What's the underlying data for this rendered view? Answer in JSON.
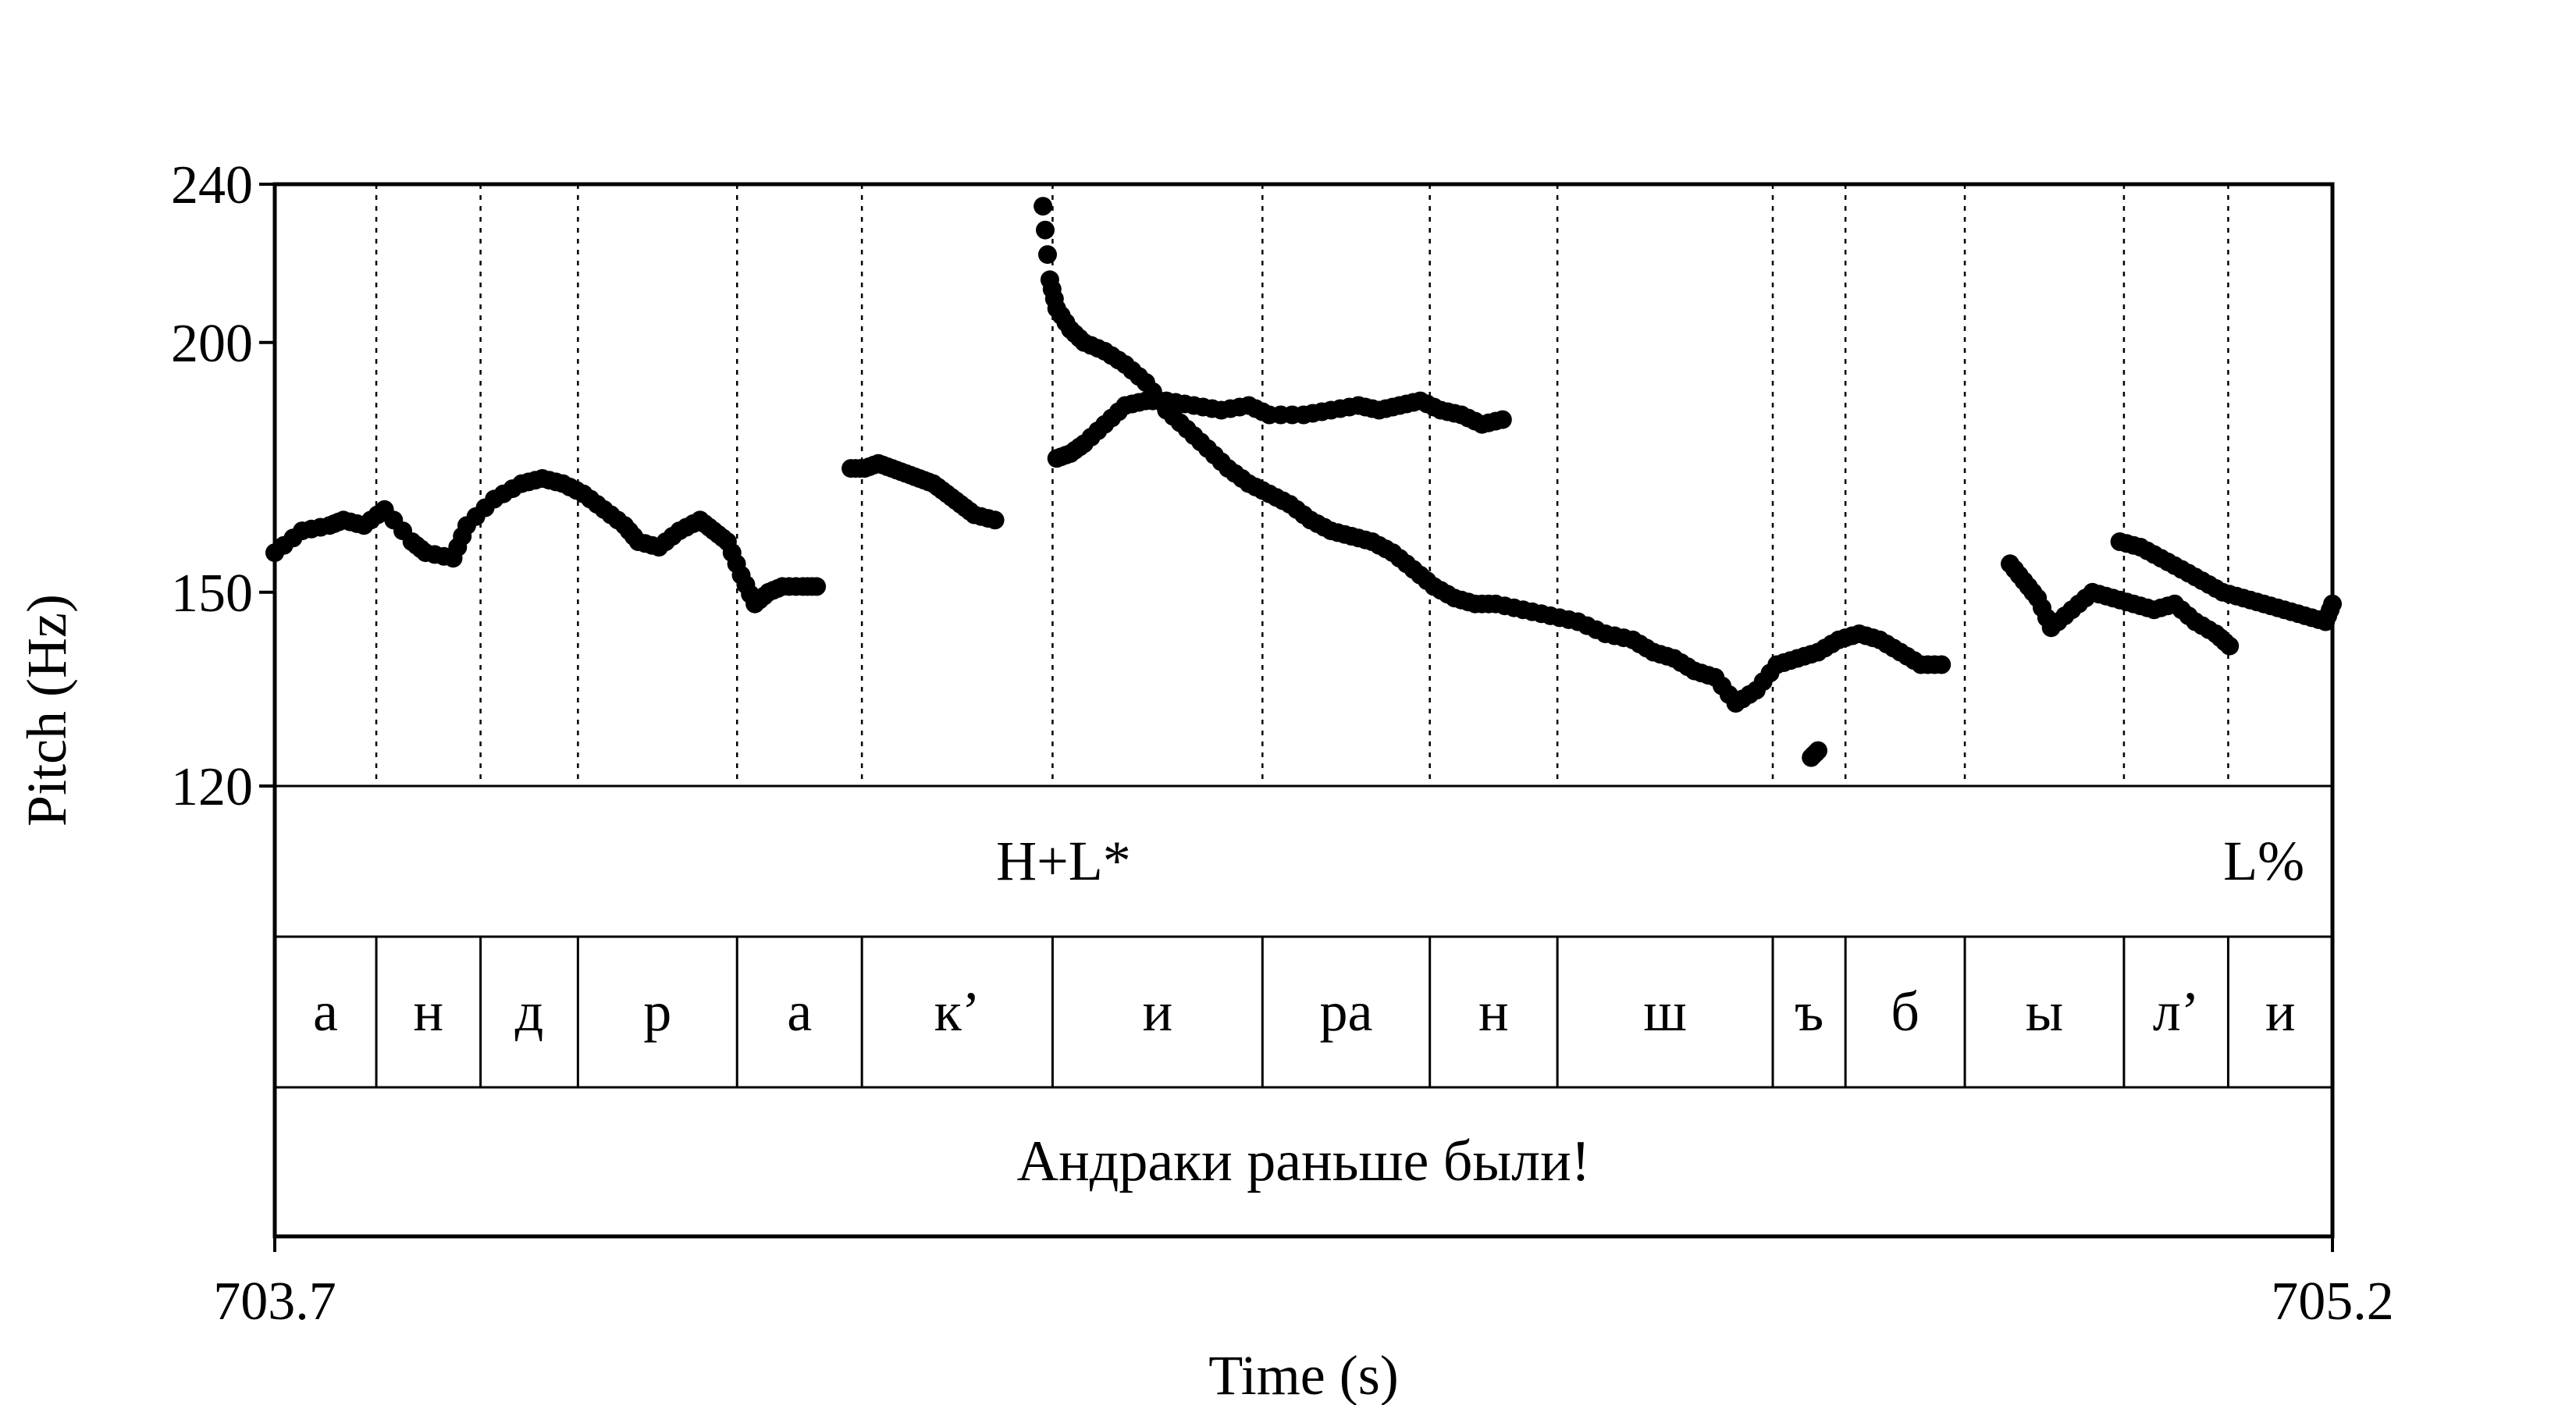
{
  "chart_data": {
    "type": "scatter",
    "xlabel": "Time (s)",
    "ylabel": "Pitch (Hz)",
    "xlim": [
      703.7,
      705.2
    ],
    "ylim": [
      120,
      240
    ],
    "x_tick_labels": [
      "703.7",
      "705.2"
    ],
    "y_tick_labels": [
      "240",
      "200",
      "150",
      "120"
    ],
    "y_ticks": [
      240,
      200,
      150,
      120
    ],
    "y_scale": "log",
    "segment_boundaries": [
      703.774,
      703.85,
      703.921,
      704.037,
      704.128,
      704.267,
      704.42,
      704.542,
      704.635,
      704.792,
      704.845,
      704.932,
      705.048,
      705.124
    ],
    "pitch_tracks": [
      {
        "points": [
          [
            703.7,
            157
          ],
          [
            703.72,
            161
          ],
          [
            703.74,
            162
          ],
          [
            703.75,
            163
          ],
          [
            703.765,
            162
          ],
          [
            703.78,
            165
          ],
          [
            703.8,
            159
          ],
          [
            703.81,
            157
          ],
          [
            703.83,
            156
          ],
          [
            703.84,
            162
          ],
          [
            703.86,
            167
          ],
          [
            703.88,
            170
          ],
          [
            703.895,
            171
          ],
          [
            703.91,
            170
          ],
          [
            703.925,
            168
          ],
          [
            703.94,
            165
          ],
          [
            703.955,
            162
          ],
          [
            703.965,
            159
          ],
          [
            703.98,
            158
          ],
          [
            703.995,
            161
          ],
          [
            704.01,
            163
          ],
          [
            704.02,
            161
          ],
          [
            704.03,
            159
          ],
          [
            704.04,
            153
          ],
          [
            704.05,
            148
          ],
          [
            704.06,
            150
          ],
          [
            704.07,
            151
          ],
          [
            704.085,
            151
          ],
          [
            704.095,
            151
          ]
        ]
      },
      {
        "points": [
          [
            704.12,
            173
          ],
          [
            704.13,
            173
          ],
          [
            704.14,
            174
          ],
          [
            704.15,
            173
          ],
          [
            704.16,
            172
          ],
          [
            704.17,
            171
          ],
          [
            704.18,
            170
          ],
          [
            704.19,
            168
          ],
          [
            704.2,
            166
          ],
          [
            704.21,
            164
          ],
          [
            704.225,
            163
          ]
        ]
      },
      {
        "points": [
          [
            704.27,
            175
          ],
          [
            704.28,
            176
          ],
          [
            704.29,
            178
          ],
          [
            704.305,
            182
          ],
          [
            704.32,
            186
          ],
          [
            704.335,
            187
          ],
          [
            704.35,
            187
          ],
          [
            704.37,
            186
          ],
          [
            704.39,
            185
          ],
          [
            704.41,
            186
          ],
          [
            704.425,
            184
          ],
          [
            704.45,
            184
          ],
          [
            704.47,
            185
          ],
          [
            704.49,
            186
          ],
          [
            704.505,
            185
          ],
          [
            704.52,
            186
          ],
          [
            704.535,
            187
          ],
          [
            704.55,
            185
          ],
          [
            704.565,
            184
          ],
          [
            704.58,
            182
          ],
          [
            704.595,
            183
          ]
        ]
      },
      {
        "points": [
          [
            704.26,
            234
          ],
          [
            704.265,
            215
          ],
          [
            704.27,
            208
          ],
          [
            704.28,
            203
          ],
          [
            704.29,
            200
          ],
          [
            704.305,
            198
          ],
          [
            704.32,
            195
          ],
          [
            704.335,
            191
          ],
          [
            704.35,
            185
          ],
          [
            704.365,
            181
          ],
          [
            704.38,
            177
          ],
          [
            704.395,
            173
          ],
          [
            704.41,
            170
          ],
          [
            704.425,
            168
          ],
          [
            704.44,
            166
          ],
          [
            704.455,
            163
          ],
          [
            704.47,
            161
          ],
          [
            704.485,
            160
          ],
          [
            704.5,
            159
          ],
          [
            704.515,
            157
          ],
          [
            704.53,
            154
          ],
          [
            704.545,
            151
          ],
          [
            704.56,
            149
          ],
          [
            704.575,
            148
          ],
          [
            704.59,
            148
          ],
          [
            704.61,
            147
          ],
          [
            704.63,
            146
          ],
          [
            704.65,
            145
          ],
          [
            704.67,
            143
          ],
          [
            704.69,
            142
          ],
          [
            704.705,
            140
          ],
          [
            704.72,
            139
          ],
          [
            704.735,
            137
          ],
          [
            704.75,
            136
          ],
          [
            704.765,
            132
          ],
          [
            704.78,
            134
          ],
          [
            704.795,
            138
          ],
          [
            704.81,
            139
          ],
          [
            704.825,
            140
          ],
          [
            704.84,
            142
          ],
          [
            704.855,
            143
          ],
          [
            704.87,
            142
          ],
          [
            704.885,
            140
          ],
          [
            704.9,
            138
          ],
          [
            704.915,
            138
          ]
        ]
      },
      {
        "points": [
          [
            704.82,
            124
          ],
          [
            704.825,
            125
          ]
        ]
      },
      {
        "points": [
          [
            704.965,
            155
          ],
          [
            704.975,
            152
          ],
          [
            704.985,
            149
          ],
          [
            704.995,
            144
          ],
          [
            705.01,
            147
          ],
          [
            705.025,
            150
          ],
          [
            705.04,
            149
          ],
          [
            705.055,
            148
          ],
          [
            705.07,
            147
          ],
          [
            705.085,
            148
          ],
          [
            705.1,
            145
          ],
          [
            705.115,
            143
          ],
          [
            705.125,
            141
          ]
        ]
      },
      {
        "points": [
          [
            705.045,
            159
          ],
          [
            705.06,
            158
          ],
          [
            705.075,
            156
          ],
          [
            705.09,
            154
          ],
          [
            705.105,
            152
          ],
          [
            705.12,
            150
          ],
          [
            705.135,
            149
          ],
          [
            705.15,
            148
          ],
          [
            705.165,
            147
          ],
          [
            705.18,
            146
          ],
          [
            705.195,
            145
          ],
          [
            705.2,
            148
          ]
        ]
      }
    ]
  },
  "tiers": {
    "intonation": [
      {
        "label": "H+L*",
        "t": 704.275
      },
      {
        "label": "L%",
        "t": 705.15
      }
    ],
    "segments": [
      "а",
      "н",
      "д",
      "р",
      "а",
      "к’",
      "и",
      "ра",
      "н",
      "ш",
      "ъ",
      "б",
      "ы",
      "л’",
      "и"
    ],
    "sentence": "Андраки раньше были!"
  }
}
